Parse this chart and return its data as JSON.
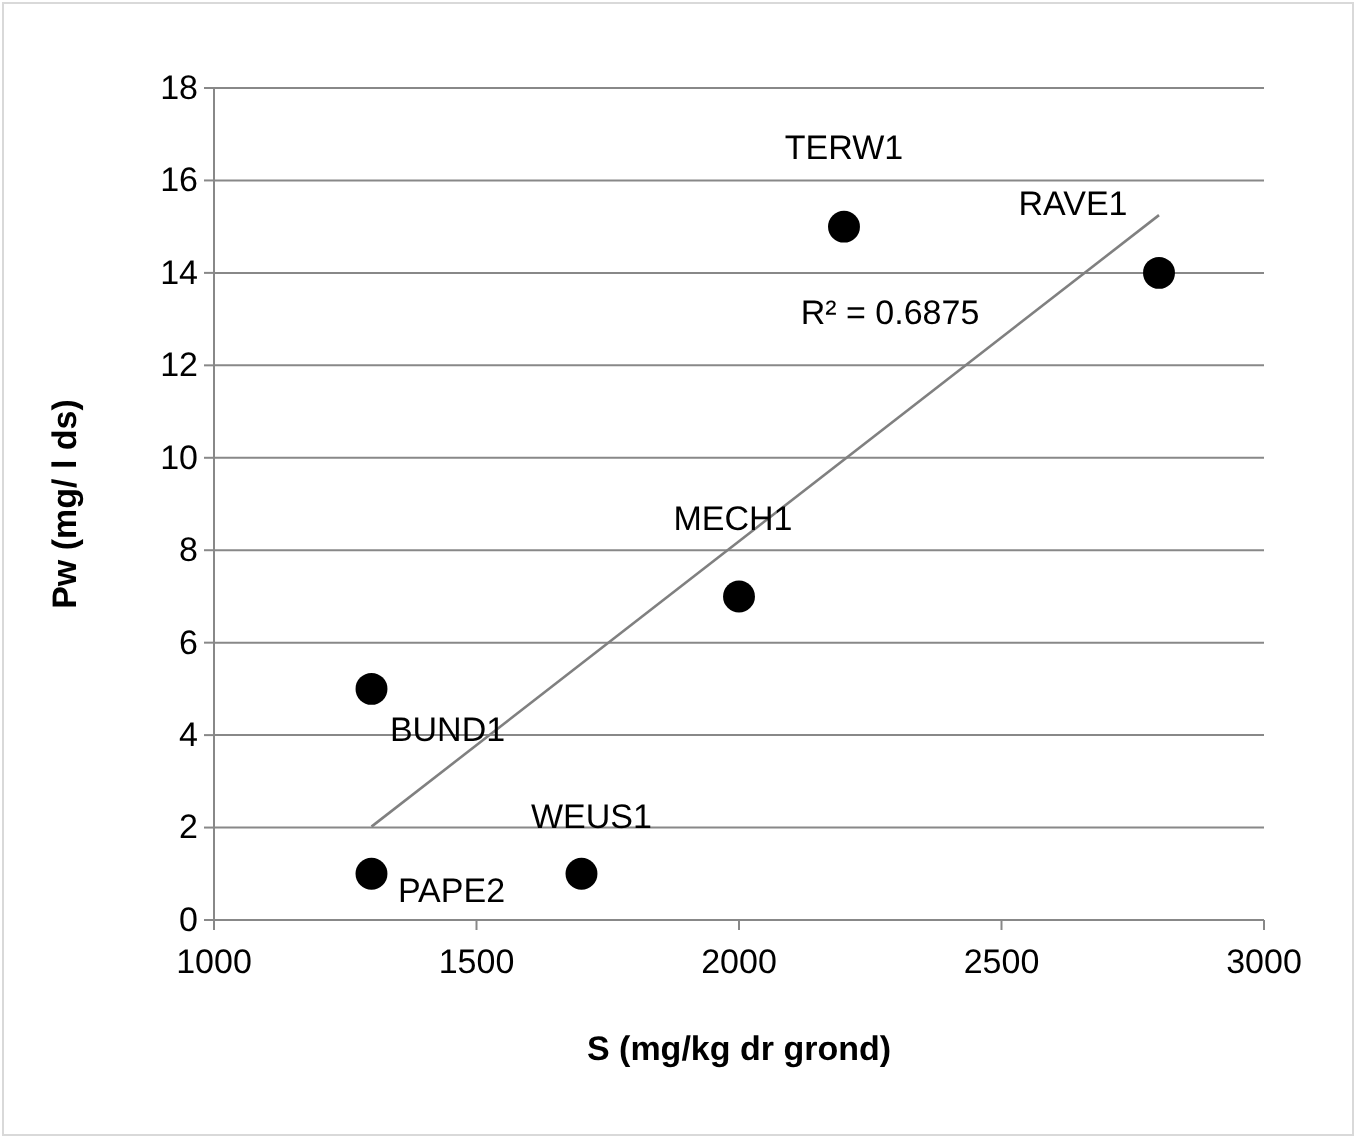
{
  "chart_data": {
    "type": "scatter",
    "xlabel": "S (mg/kg dr grond)",
    "ylabel": "Pw (mg/ l ds)",
    "xlim": [
      1000,
      3000
    ],
    "xticks": [
      1000,
      1500,
      2000,
      2500,
      3000
    ],
    "ylim": [
      0,
      18
    ],
    "yticks": [
      0,
      2,
      4,
      6,
      8,
      10,
      12,
      14,
      16,
      18
    ],
    "grid": "y",
    "series": [
      {
        "marker": "circle",
        "color": "#000000",
        "x": [
          1300,
          1300,
          1700,
          2000,
          2200,
          2800
        ],
        "values": [
          5,
          1,
          1,
          7,
          15,
          14
        ]
      },
      {
        "type": "line",
        "color": "#808080",
        "x": [
          1300,
          2800
        ],
        "values": [
          2.02,
          15.25
        ]
      }
    ],
    "annotations": [
      {
        "text": "TERW1",
        "x": 2200,
        "y": 15
      },
      {
        "text": "RAVE1",
        "x": 2800,
        "y": 14
      },
      "R² = 0.6875",
      {
        "text": "MECH1",
        "x": 2000,
        "y": 7
      },
      {
        "text": "BUND1",
        "x": 1300,
        "y": 5
      },
      {
        "text": "WEUS1",
        "x": 1700,
        "y": 1
      },
      {
        "text": "PAPE2",
        "x": 1300,
        "y": 1
      }
    ]
  }
}
